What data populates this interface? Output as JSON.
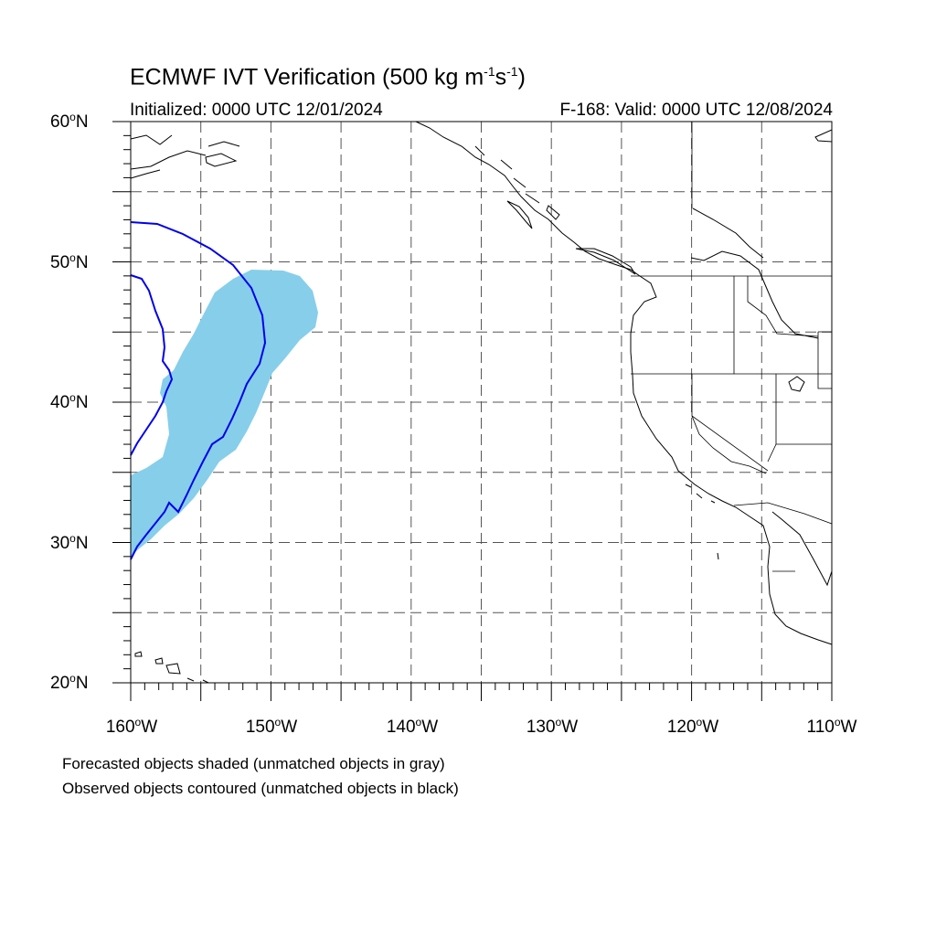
{
  "title": {
    "prefix": "ECMWF IVT Verification (500 kg m",
    "exp1": "-1",
    "mid": "s",
    "exp2": "-1",
    "suffix": ")"
  },
  "subtitle_left": "Initialized: 0000 UTC 12/01/2024",
  "subtitle_right": "F-168: Valid: 0000 UTC 12/08/2024",
  "map": {
    "lon_range": [
      -160,
      -110
    ],
    "lat_range": [
      20,
      60
    ],
    "lat_ticks": [
      {
        "value": 60,
        "num": "60",
        "deg": "o",
        "hemi": "N"
      },
      {
        "value": 50,
        "num": "50",
        "deg": "o",
        "hemi": "N"
      },
      {
        "value": 40,
        "num": "40",
        "deg": "o",
        "hemi": "N"
      },
      {
        "value": 30,
        "num": "30",
        "deg": "o",
        "hemi": "N"
      },
      {
        "value": 20,
        "num": "20",
        "deg": "o",
        "hemi": "N"
      }
    ],
    "lon_ticks": [
      {
        "value": -160,
        "num": "160",
        "deg": "o",
        "hemi": "W"
      },
      {
        "value": -150,
        "num": "150",
        "deg": "o",
        "hemi": "W"
      },
      {
        "value": -140,
        "num": "140",
        "deg": "o",
        "hemi": "W"
      },
      {
        "value": -130,
        "num": "130",
        "deg": "o",
        "hemi": "W"
      },
      {
        "value": -120,
        "num": "120",
        "deg": "o",
        "hemi": "W"
      },
      {
        "value": -110,
        "num": "110",
        "deg": "o",
        "hemi": "W"
      }
    ],
    "forecast_fill_color": "#87ceea",
    "observed_contour_color": "#0000ee",
    "coastline_color": "#000000",
    "grid_style": "dashed"
  },
  "footnote_1": "Forecasted objects shaded (unmatched objects in gray)",
  "footnote_2": "Observed objects contoured (unmatched objects in black)"
}
